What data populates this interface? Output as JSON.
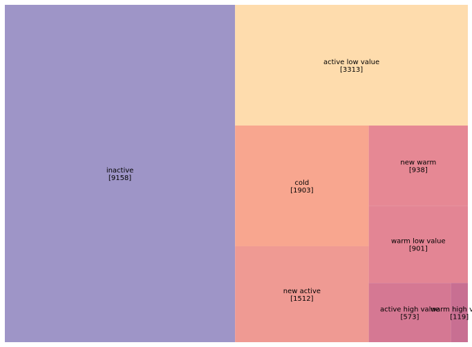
{
  "chart_data": {
    "type": "treemap",
    "title": "",
    "segments": [
      {
        "label": "inactive",
        "value": 9158,
        "color": "#9e95c7"
      },
      {
        "label": "active low value",
        "value": 3313,
        "color": "#fedcad"
      },
      {
        "label": "cold",
        "value": 1903,
        "color": "#f8a68f"
      },
      {
        "label": "new active",
        "value": 1512,
        "color": "#ef9a93"
      },
      {
        "label": "new warm",
        "value": 938,
        "color": "#e68894"
      },
      {
        "label": "warm low value",
        "value": 901,
        "color": "#e38594"
      },
      {
        "label": "active high value",
        "value": 573,
        "color": "#d57893"
      },
      {
        "label": "warm high value",
        "value": 119,
        "color": "#c86f92"
      }
    ]
  }
}
